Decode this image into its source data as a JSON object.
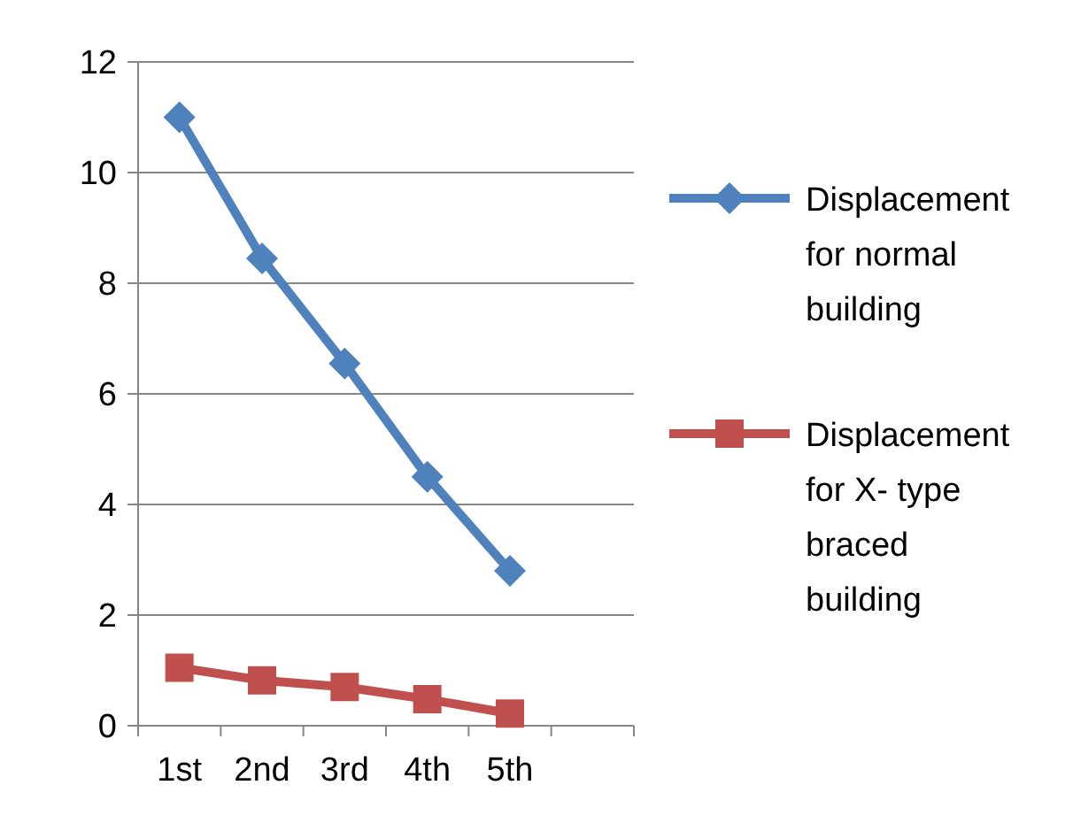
{
  "chart_data": {
    "type": "line",
    "categories": [
      "1st",
      "2nd",
      "3rd",
      "4th",
      "5th",
      null
    ],
    "series": [
      {
        "name": "Displacement for normal building",
        "color": "#4f81bd",
        "marker": "diamond",
        "values": [
          11,
          8.45,
          6.55,
          4.5,
          2.8,
          null
        ]
      },
      {
        "name": "Displacement for X- type braced building",
        "color": "#c0504d",
        "marker": "square",
        "values": [
          1.05,
          0.82,
          0.7,
          0.48,
          0.22,
          null
        ]
      }
    ],
    "ylim": [
      0,
      12
    ],
    "yticks": [
      0,
      2,
      4,
      6,
      8,
      10,
      12
    ],
    "grid": "y",
    "legend": "right"
  }
}
